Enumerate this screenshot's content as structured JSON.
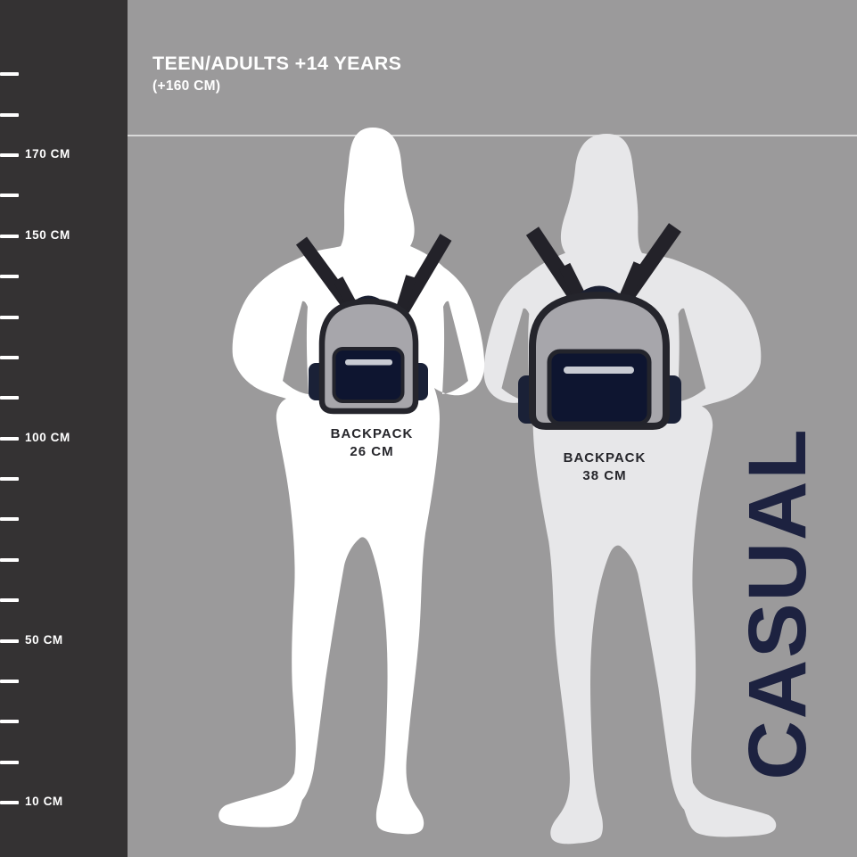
{
  "header": {
    "title": "TEEN/ADULTS +14 YEARS",
    "subtitle": "(+160 CM)"
  },
  "ruler": {
    "unit": "CM",
    "min_cm": 10,
    "max_cm": 190,
    "step_cm": 10,
    "labels": [
      {
        "cm": 170,
        "text": "170 CM"
      },
      {
        "cm": 150,
        "text": "150 CM"
      },
      {
        "cm": 100,
        "text": "100 CM"
      },
      {
        "cm": 50,
        "text": "50 CM"
      },
      {
        "cm": 10,
        "text": "10 CM"
      }
    ]
  },
  "figures": [
    {
      "id": "small",
      "silhouette": "teen-with-small-backpack",
      "backpack": {
        "label": "BACKPACK",
        "size": "26 CM"
      }
    },
    {
      "id": "large",
      "silhouette": "adult-with-large-backpack",
      "backpack": {
        "label": "BACKPACK",
        "size": "38 CM"
      }
    }
  ],
  "category_label": "CASUAL",
  "colors": {
    "bg": "#9b9a9b",
    "panel": "#343233",
    "white": "#ffffff",
    "fig_small": "#ffffff",
    "fig_large": "#e7e7e9",
    "bag_body": "#a7a6ab",
    "bag_outline": "#25252c",
    "strap": "#232229",
    "handle": "#1b2032",
    "pocket": "#0e1530",
    "pocket_outline": "#23242c",
    "side_pocket": "#1a2137",
    "zipper": "#c8cbd3",
    "label_ink": "#26262b",
    "navy": "#1d2240",
    "ref_line_on_gray": "#d9d9d9",
    "ref_line_on_dark": "#4d4b4c"
  }
}
